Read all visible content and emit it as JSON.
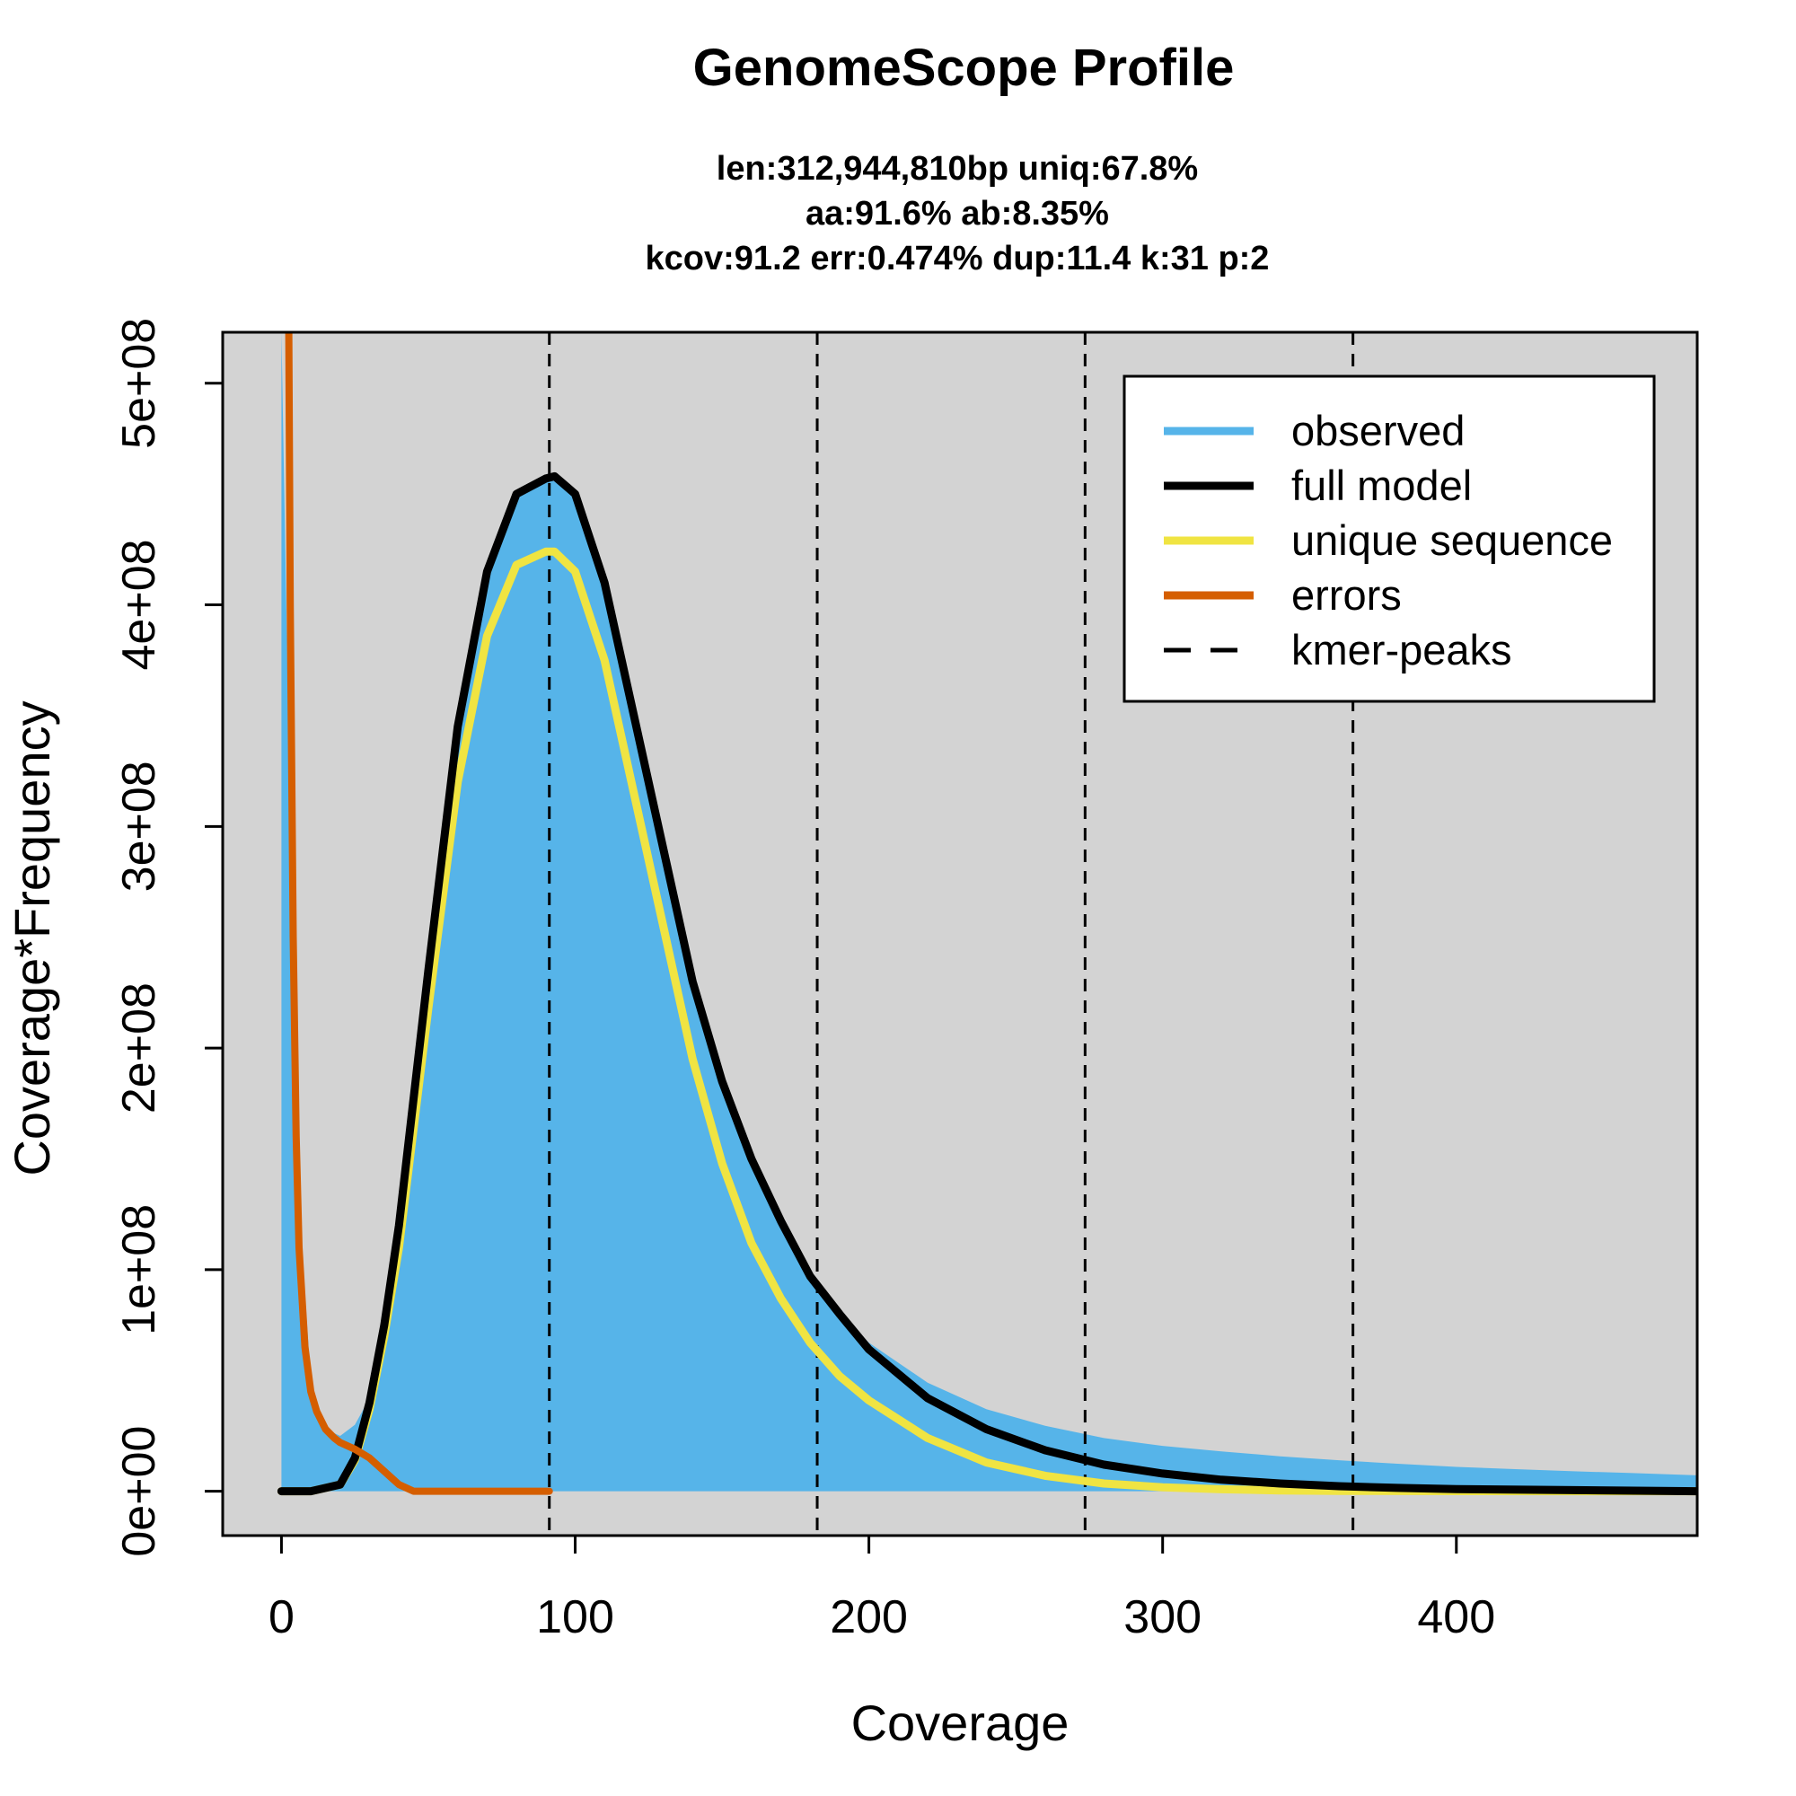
{
  "chart_data": {
    "type": "area",
    "title": "GenomeScope Profile",
    "subtitle_lines": [
      "len:312,944,810bp uniq:67.8%",
      "aa:91.6% ab:8.35%",
      "kcov:91.2 err:0.474%  dup:11.4  k:31 p:2"
    ],
    "xlabel": "Coverage",
    "ylabel": "Coverage*Frequency",
    "xlim": [
      -20,
      482
    ],
    "ylim": [
      -20000000,
      523000000
    ],
    "x_ticks": [
      0,
      100,
      200,
      300,
      400
    ],
    "x_tick_labels": [
      "0",
      "100",
      "200",
      "300",
      "400"
    ],
    "y_ticks": [
      0,
      100000000,
      200000000,
      300000000,
      400000000,
      500000000
    ],
    "y_tick_labels": [
      "0e+00",
      "1e+08",
      "2e+08",
      "3e+08",
      "4e+08",
      "5e+08"
    ],
    "kmer_peaks": [
      91.2,
      182.4,
      273.6,
      364.8
    ],
    "legend_position": "top-right",
    "legend": [
      {
        "label": "observed",
        "color": "#56B4E9",
        "style": "solid"
      },
      {
        "label": "full model",
        "color": "#000000",
        "style": "solid"
      },
      {
        "label": "unique sequence",
        "color": "#F0E442",
        "style": "solid"
      },
      {
        "label": "errors",
        "color": "#D55E00",
        "style": "solid"
      },
      {
        "label": "kmer-peaks",
        "color": "#000000",
        "style": "dashed"
      }
    ],
    "colors": {
      "background": "#D3D3D3",
      "observed": "#56B4E9",
      "full_model": "#000000",
      "unique_sequence": "#F0E442",
      "errors": "#D55E00"
    },
    "series": [
      {
        "name": "observed",
        "x": [
          0,
          3,
          6,
          10,
          15,
          20,
          25,
          30,
          35,
          40,
          50,
          60,
          70,
          80,
          90,
          100,
          110,
          120,
          130,
          140,
          150,
          160,
          170,
          180,
          190,
          200,
          220,
          240,
          260,
          280,
          300,
          320,
          340,
          360,
          380,
          400,
          420,
          440,
          460,
          482
        ],
        "y": [
          523000000,
          300000000,
          130000000,
          50000000,
          28000000,
          25000000,
          30000000,
          42000000,
          70000000,
          120000000,
          240000000,
          345000000,
          415000000,
          450000000,
          458000000,
          450000000,
          410000000,
          350000000,
          290000000,
          230000000,
          185000000,
          150000000,
          122000000,
          100000000,
          81000000,
          67000000,
          49000000,
          37000000,
          29500000,
          24000000,
          20500000,
          18000000,
          15800000,
          14000000,
          12400000,
          11000000,
          10000000,
          9000000,
          8200000,
          7200000
        ]
      },
      {
        "name": "full model",
        "x": [
          0,
          10,
          20,
          25,
          30,
          35,
          40,
          50,
          60,
          70,
          80,
          90,
          93,
          100,
          110,
          120,
          130,
          140,
          150,
          160,
          170,
          180,
          190,
          200,
          220,
          240,
          260,
          280,
          300,
          320,
          340,
          360,
          380,
          400,
          440,
          482
        ],
        "y": [
          0,
          0,
          3000000,
          15000000,
          40000000,
          75000000,
          120000000,
          235000000,
          345000000,
          415000000,
          450000000,
          457000000,
          458000000,
          450000000,
          410000000,
          350000000,
          290000000,
          230000000,
          185000000,
          150000000,
          122000000,
          97000000,
          80000000,
          64000000,
          42000000,
          28000000,
          18500000,
          12000000,
          8000000,
          5200000,
          3500000,
          2300000,
          1500000,
          1000000,
          500000,
          0
        ]
      },
      {
        "name": "unique sequence",
        "x": [
          0,
          10,
          20,
          25,
          30,
          35,
          40,
          50,
          60,
          70,
          80,
          90,
          93,
          100,
          110,
          120,
          130,
          140,
          150,
          160,
          170,
          180,
          190,
          200,
          220,
          240,
          260,
          280,
          300,
          320,
          340,
          360,
          400,
          440,
          482
        ],
        "y": [
          0,
          0,
          3000000,
          14000000,
          37000000,
          70000000,
          110000000,
          218000000,
          320000000,
          386000000,
          418000000,
          424000000,
          424000000,
          415000000,
          375000000,
          315000000,
          255000000,
          195000000,
          148000000,
          112000000,
          87000000,
          67000000,
          52000000,
          41000000,
          24000000,
          13000000,
          7000000,
          3500000,
          1800000,
          900000,
          400000,
          200000,
          50000,
          0,
          0
        ]
      },
      {
        "name": "errors",
        "x": [
          2.5,
          3,
          4,
          5,
          6,
          8,
          10,
          12,
          15,
          18,
          20,
          25,
          30,
          35,
          40,
          45,
          60,
          75,
          91.2
        ],
        "y": [
          523000000,
          400000000,
          250000000,
          160000000,
          110000000,
          65000000,
          45000000,
          36000000,
          28000000,
          24000000,
          22000000,
          19000000,
          15000000,
          9000000,
          3000000,
          0,
          0,
          0,
          0
        ]
      }
    ]
  }
}
